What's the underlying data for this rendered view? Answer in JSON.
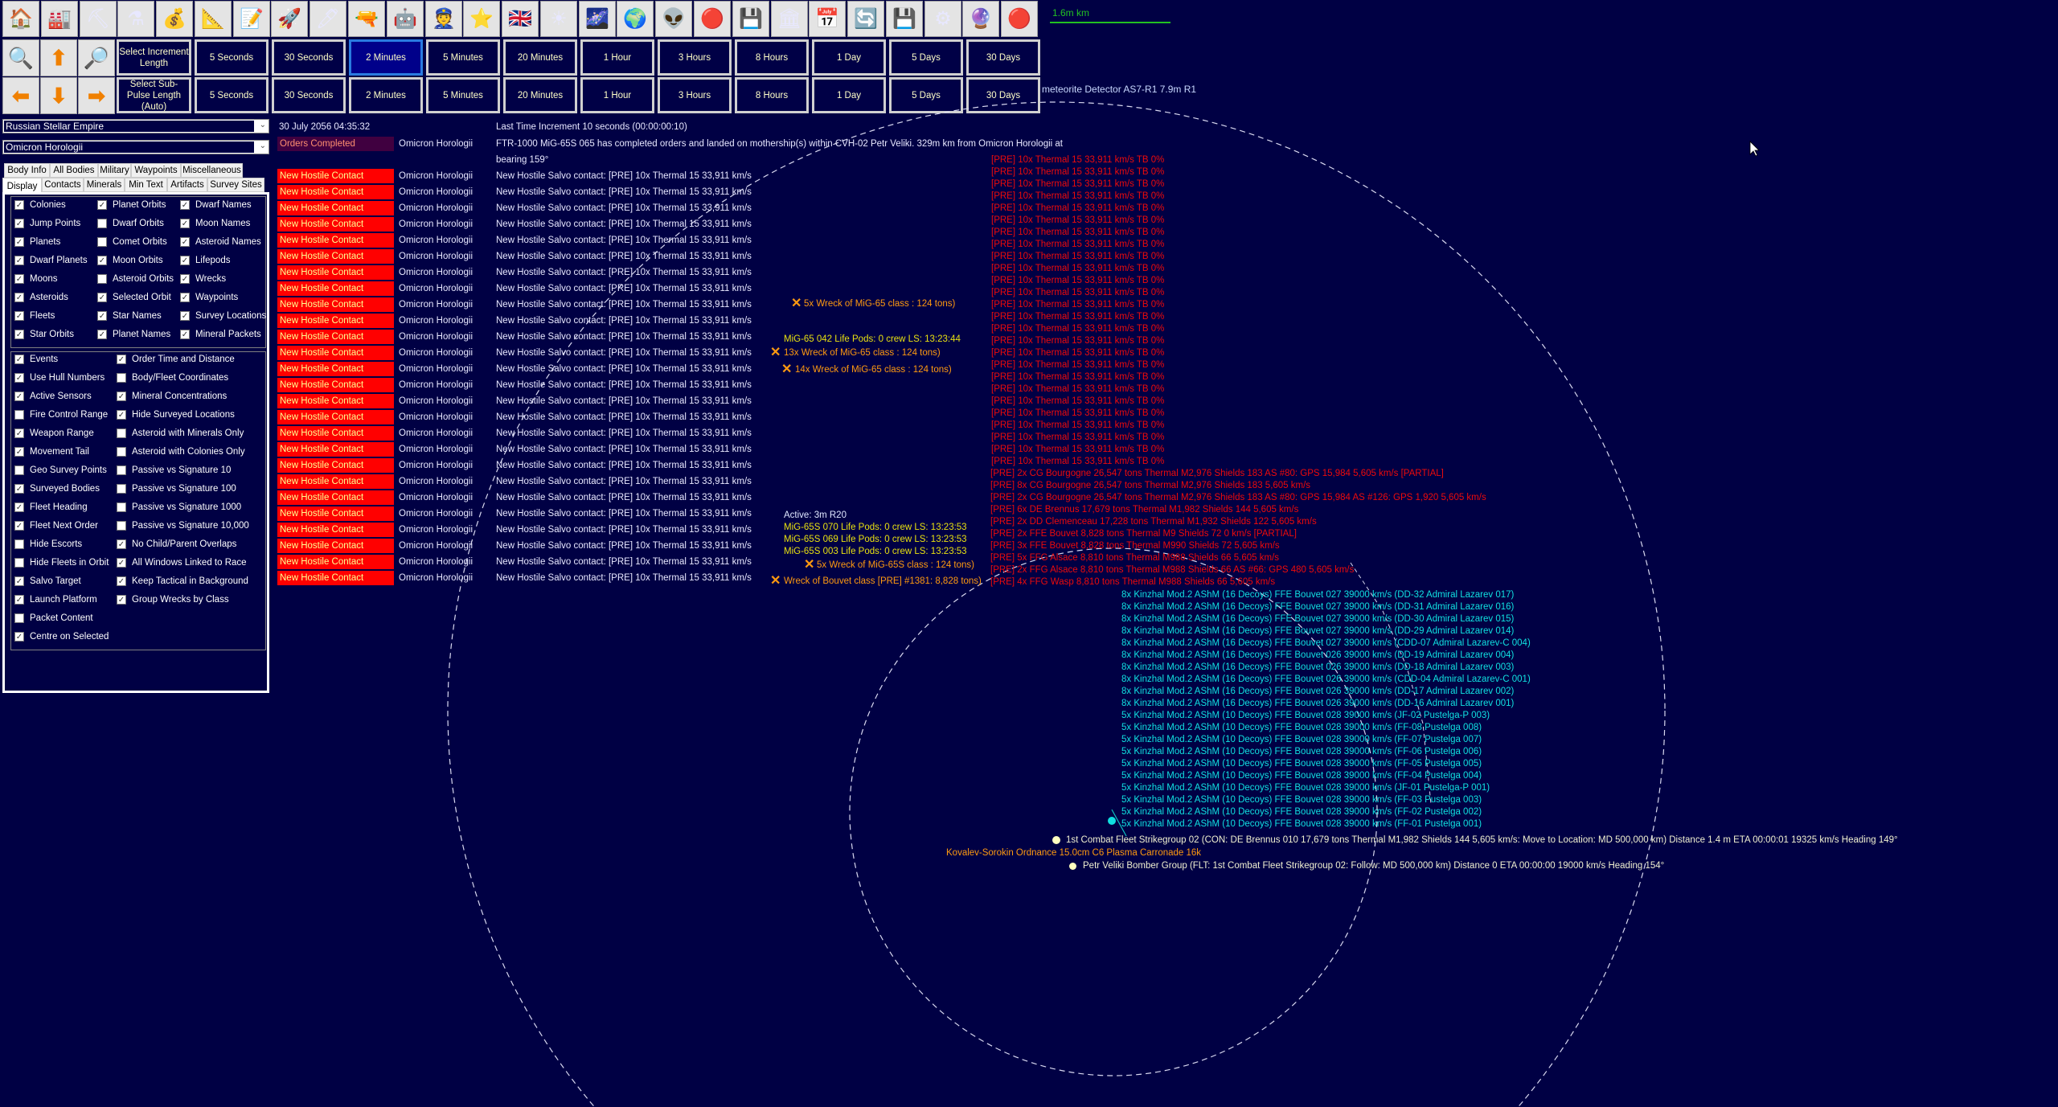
{
  "toolbar": {
    "icons": [
      "colony-house-icon",
      "industry-icon",
      "mining-icon",
      "research-flask-icon",
      "wealth-money-bag-icon",
      "ship-design-blueprint-icon",
      "class-design-icon",
      "warship-icon",
      "missile-icon",
      "ground-forces-icon",
      "walker-vehicle-icon",
      "commander-icon",
      "medal-star-icon",
      "race-flag-icon",
      "solar-system-icon",
      "galaxy-icon",
      "globe-icon",
      "alien-icon",
      "sensor-eye-icon",
      "circuit-board-icon",
      "government-building-icon",
      "calendar-icon",
      "refresh-icon",
      "save-disk-icon",
      "settings-gear-icon",
      "crystal-ball-icon",
      "red-button-icon"
    ],
    "increment_label": "Select Increment Length",
    "subpulse_label": "Select Sub-Pulse Length (Auto)",
    "increments": [
      "5 Seconds",
      "30 Seconds",
      "2 Minutes",
      "5 Minutes",
      "20 Minutes",
      "1 Hour",
      "3 Hours",
      "8 Hours",
      "1 Day",
      "5 Days",
      "30 Days"
    ],
    "selected_increment": "2 Minutes",
    "subpulses": [
      "5 Seconds",
      "30 Seconds",
      "2 Minutes",
      "5 Minutes",
      "20 Minutes",
      "1 Hour",
      "3 Hours",
      "8 Hours",
      "1 Day",
      "5 Days",
      "30 Days"
    ],
    "nav_row1": [
      "zoom-in-icon",
      "arrow-up-icon",
      "zoom-out-icon"
    ],
    "nav_row2": [
      "arrow-left-icon",
      "arrow-down-icon",
      "arrow-right-icon"
    ]
  },
  "scale": {
    "label": "1.6m km",
    "color": "#22c022"
  },
  "sensor_label": "meteorite Detector AS7-R1  7.9m  R1",
  "sidebar": {
    "race": "Russian Stellar Empire",
    "system": "Omicron Horologii",
    "tabs_row1": [
      "Body Info",
      "All Bodies",
      "Military",
      "Waypoints",
      "Miscellaneous"
    ],
    "tabs_row2": [
      "Display",
      "Contacts",
      "Minerals",
      "Min Text",
      "Artifacts",
      "Survey Sites"
    ],
    "selected_tab": "Display",
    "display_options": [
      [
        {
          "label": "Colonies",
          "checked": true
        },
        {
          "label": "Jump Points",
          "checked": true
        },
        {
          "label": "Planets",
          "checked": true
        },
        {
          "label": "Dwarf Planets",
          "checked": true
        },
        {
          "label": "Moons",
          "checked": true
        },
        {
          "label": "Asteroids",
          "checked": true
        },
        {
          "label": "Fleets",
          "checked": true
        },
        {
          "label": "Star Orbits",
          "checked": true
        }
      ],
      [
        {
          "label": "Planet Orbits",
          "checked": true
        },
        {
          "label": "Dwarf Orbits",
          "checked": false
        },
        {
          "label": "Comet Orbits",
          "checked": false
        },
        {
          "label": "Moon Orbits",
          "checked": true
        },
        {
          "label": "Asteroid Orbits",
          "checked": false
        },
        {
          "label": "Selected Orbit",
          "checked": true
        },
        {
          "label": "Star Names",
          "checked": true
        },
        {
          "label": "Planet Names",
          "checked": true
        }
      ],
      [
        {
          "label": "Dwarf Names",
          "checked": true
        },
        {
          "label": "Moon Names",
          "checked": true
        },
        {
          "label": "Asteroid Names",
          "checked": true
        },
        {
          "label": "Lifepods",
          "checked": true
        },
        {
          "label": "Wrecks",
          "checked": true
        },
        {
          "label": "Waypoints",
          "checked": true
        },
        {
          "label": "Survey Locations",
          "checked": true
        },
        {
          "label": "Mineral Packets",
          "checked": true
        }
      ]
    ],
    "other_options": [
      [
        {
          "label": "Events",
          "checked": true
        },
        {
          "label": "Use Hull Numbers",
          "checked": true
        },
        {
          "label": "Active Sensors",
          "checked": true
        },
        {
          "label": "Fire Control Range",
          "checked": false
        },
        {
          "label": "Weapon Range",
          "checked": true
        },
        {
          "label": "Movement Tail",
          "checked": true
        },
        {
          "label": "Geo Survey Points",
          "checked": false
        },
        {
          "label": "Surveyed Bodies",
          "checked": true
        },
        {
          "label": "Fleet Heading",
          "checked": true
        },
        {
          "label": "Fleet Next Order",
          "checked": true
        },
        {
          "label": "Hide Escorts",
          "checked": false
        },
        {
          "label": "Hide Fleets in Orbit",
          "checked": false
        },
        {
          "label": "Salvo Target",
          "checked": true
        },
        {
          "label": "Launch Platform",
          "checked": true
        },
        {
          "label": "Packet Content",
          "checked": false
        },
        {
          "label": "Centre on Selected",
          "checked": true
        }
      ],
      [
        {
          "label": "Order Time and Distance",
          "checked": true
        },
        {
          "label": "Body/Fleet Coordinates",
          "checked": false
        },
        {
          "label": "Mineral Concentrations",
          "checked": true
        },
        {
          "label": "Hide Surveyed Locations",
          "checked": true
        },
        {
          "label": "Asteroid with Minerals Only",
          "checked": false
        },
        {
          "label": "Asteroid with Colonies Only",
          "checked": false
        },
        {
          "label": "Passive vs Signature 10",
          "checked": false
        },
        {
          "label": "Passive vs Signature 100",
          "checked": false
        },
        {
          "label": "Passive vs Signature 1000",
          "checked": false
        },
        {
          "label": "Passive vs Signature 10,000",
          "checked": false
        },
        {
          "label": "No Child/Parent Overlaps",
          "checked": true
        },
        {
          "label": "All Windows Linked to Race",
          "checked": true
        },
        {
          "label": "Keep Tactical in Background",
          "checked": true
        },
        {
          "label": "Group Wrecks by Class",
          "checked": true
        }
      ]
    ]
  },
  "events": {
    "date": "30 July 2056 04:35:32",
    "last_increment": "Last Time Increment 10 seconds (00:00:00:10)",
    "orders": {
      "type": "Orders Completed",
      "system": "Omicron Horologii",
      "message": "FTR-1000 MiG-65S 065 has completed orders and landed on mothership(s) within CVH-02 Petr Veliki. 329m km from Omicron Horologii at",
      "message_cont": "bearing 159°"
    },
    "hostile_type": "New Hostile Contact",
    "hostile_system": "Omicron Horologii",
    "hostile_messages": [
      "New Hostile Salvo contact:  [PRE] 10x Thermal 15  33,911 km/s",
      "New Hostile Salvo contact:  [PRE] 10x Thermal 15  33,911 km/s",
      "New Hostile Salvo contact:  [PRE] 10x Thermal 15  33,911 km/s",
      "New Hostile Salvo contact:  [PRE] 10x Thermal 15  33,911 km/s",
      "New Hostile Salvo contact:  [PRE] 10x Thermal 15  33,911 km/s",
      "New Hostile Salvo contact:  [PRE] 10x Thermal 15  33,911 km/s",
      "New Hostile Salvo contact:  [PRE] 10x Thermal 15  33,911 km/s",
      "New Hostile Salvo contact:  [PRE] 10x Thermal 15  33,911 km/s",
      "New Hostile Salvo contact:  [PRE] 10x Thermal 15  33,911 km/s",
      "New Hostile Salvo contact:  [PRE] 10x Thermal 15  33,911 km/s",
      "New Hostile Salvo contact:  [PRE] 10x Thermal 15  33,911 km/s",
      "New Hostile Salvo contact:  [PRE] 10x Thermal 15  33,911 km/s",
      "New Hostile Salvo contact:  [PRE] 10x Thermal 15  33,911 km/s",
      "New Hostile Salvo contact:  [PRE] 10x Thermal 15  33,911 km/s",
      "New Hostile Salvo contact:  [PRE] 10x Thermal 15  33,911 km/s",
      "New Hostile Salvo contact:  [PRE] 10x Thermal 15  33,911 km/s",
      "New Hostile Salvo contact:  [PRE] 10x Thermal 15  33,911 km/s",
      "New Hostile Salvo contact:  [PRE] 10x Thermal 15  33,911 km/s",
      "New Hostile Salvo contact:  [PRE] 10x Thermal 15  33,911 km/s",
      "New Hostile Salvo contact:  [PRE] 10x Thermal 15  33,911 km/s",
      "New Hostile Salvo contact:  [PRE] 10x Thermal 15  33,911 km/s",
      "New Hostile Salvo contact:  [PRE] 10x Thermal 15  33,911 km/s",
      "New Hostile Salvo contact:  [PRE] 10x Thermal 15  33,911 km/s",
      "New Hostile Salvo contact:  [PRE] 10x Thermal 15  33,911 km/s",
      "New Hostile Salvo contact:  [PRE] 10x Thermal 15  33,911 km/s",
      "New Hostile Salvo contact:  [PRE] 10x Thermal 15  33,911 km/s"
    ]
  },
  "map": {
    "hostile_salvos": [
      "[PRE] 10x Thermal 15  33,911 km/s  TB 0%",
      "[PRE] 10x Thermal 15  33,911 km/s  TB 0%",
      "[PRE] 10x Thermal 15  33,911 km/s  TB 0%",
      "[PRE] 10x Thermal 15  33,911 km/s  TB 0%",
      "[PRE] 10x Thermal 15  33,911 km/s  TB 0%",
      "[PRE] 10x Thermal 15  33,911 km/s  TB 0%",
      "[PRE] 10x Thermal 15  33,911 km/s  TB 0%",
      "[PRE] 10x Thermal 15  33,911 km/s  TB 0%",
      "[PRE] 10x Thermal 15  33,911 km/s  TB 0%",
      "[PRE] 10x Thermal 15  33,911 km/s  TB 0%",
      "[PRE] 10x Thermal 15  33,911 km/s  TB 0%",
      "[PRE] 10x Thermal 15  33,911 km/s  TB 0%",
      "[PRE] 10x Thermal 15  33,911 km/s  TB 0%",
      "[PRE] 10x Thermal 15  33,911 km/s  TB 0%",
      "[PRE] 10x Thermal 15  33,911 km/s  TB 0%",
      "[PRE] 10x Thermal 15  33,911 km/s  TB 0%",
      "[PRE] 10x Thermal 15  33,911 km/s  TB 0%",
      "[PRE] 10x Thermal 15  33,911 km/s  TB 0%",
      "[PRE] 10x Thermal 15  33,911 km/s  TB 0%",
      "[PRE] 10x Thermal 15  33,911 km/s  TB 0%",
      "[PRE] 10x Thermal 15  33,911 km/s  TB 0%",
      "[PRE] 10x Thermal 15  33,911 km/s  TB 0%",
      "[PRE] 10x Thermal 15  33,911 km/s  TB 0%",
      "[PRE] 10x Thermal 15  33,911 km/s  TB 0%",
      "[PRE] 10x Thermal 15  33,911 km/s  TB 0%",
      "[PRE] 10x Thermal 15  33,911 km/s  TB 0%"
    ],
    "hostile_ships": [
      "[PRE]  2x CG Bourgogne  26,547 tons   Thermal M2,976   Shields 183   AS #80: GPS 15,984   5,605 km/s   [PARTIAL]",
      "[PRE]  8x CG Bourgogne  26,547 tons   Thermal M2,976   Shields 183   5,605 km/s",
      "[PRE]  2x CG Bourgogne  26,547 tons   Thermal M2,976   Shields 183   AS #80: GPS 15,984   AS #126: GPS 1,920   5,605 km/s",
      "[PRE]  6x DE Brennus  17,679 tons   Thermal M1,982   Shields 144   5,605 km/s",
      "[PRE]  2x DD Clemenceau  17,228 tons   Thermal M1,932   Shields 122   5,605 km/s",
      "[PRE]  2x FFE Bouvet  8,828 tons   Thermal M9   Shields 72   0 km/s   [PARTIAL]",
      "[PRE]  3x FFE Bouvet  8,828 tons   Thermal M990   Shields 72   5,605 km/s",
      "[PRE]  5x FFG Alsace  8,810 tons   Thermal M988   Shields 66   5,605 km/s",
      "[PRE]  2x FFG Alsace  8,810 tons   Thermal M988   Shields 66   AS #66: GPS 480   5,605 km/s",
      "[PRE]  4x FFG Wasp  8,810 tons   Thermal M988   Shields 66   5,605 km/s"
    ],
    "missiles": [
      "8x Kinzhal Mod.2 AShM (16 Decoys)  FFE Bouvet 027  39000 km/s (DD-32 Admiral Lazarev 017)",
      "8x Kinzhal Mod.2 AShM (16 Decoys)  FFE Bouvet 027  39000 km/s (DD-31 Admiral Lazarev 016)",
      "8x Kinzhal Mod.2 AShM (16 Decoys)  FFE Bouvet 027  39000 km/s (DD-30 Admiral Lazarev 015)",
      "8x Kinzhal Mod.2 AShM (16 Decoys)  FFE Bouvet 027  39000 km/s (DD-29 Admiral Lazarev 014)",
      "8x Kinzhal Mod.2 AShM (16 Decoys)  FFE Bouvet 027  39000 km/s (CDD-07 Admiral Lazarev-C 004)",
      "8x Kinzhal Mod.2 AShM (16 Decoys)  FFE Bouvet 026  39000 km/s (DD-19 Admiral Lazarev 004)",
      "8x Kinzhal Mod.2 AShM (16 Decoys)  FFE Bouvet 026  39000 km/s (DD-18 Admiral Lazarev 003)",
      "8x Kinzhal Mod.2 AShM (16 Decoys)  FFE Bouvet 026  39000 km/s (CDD-04 Admiral Lazarev-C 001)",
      "8x Kinzhal Mod.2 AShM (16 Decoys)  FFE Bouvet 026  39000 km/s (DD-17 Admiral Lazarev 002)",
      "8x Kinzhal Mod.2 AShM (16 Decoys)  FFE Bouvet 026  39000 km/s (DD-16 Admiral Lazarev 001)",
      "5x Kinzhal Mod.2 AShM (10 Decoys)  FFE Bouvet 028  39000 km/s (JF-02 Pustelga-P 003)",
      "5x Kinzhal Mod.2 AShM (10 Decoys)  FFE Bouvet 028  39000 km/s (FF-08 Pustelga 008)",
      "5x Kinzhal Mod.2 AShM (10 Decoys)  FFE Bouvet 028  39000 km/s (FF-07 Pustelga 007)",
      "5x Kinzhal Mod.2 AShM (10 Decoys)  FFE Bouvet 028  39000 km/s (FF-06 Pustelga 006)",
      "5x Kinzhal Mod.2 AShM (10 Decoys)  FFE Bouvet 028  39000 km/s (FF-05 Pustelga 005)",
      "5x Kinzhal Mod.2 AShM (10 Decoys)  FFE Bouvet 028  39000 km/s (FF-04 Pustelga 004)",
      "5x Kinzhal Mod.2 AShM (10 Decoys)  FFE Bouvet 028  39000 km/s (JF-01 Pustelga-P 001)",
      "5x Kinzhal Mod.2 AShM (10 Decoys)  FFE Bouvet 028  39000 km/s (FF-03 Pustelga 003)",
      "5x Kinzhal Mod.2 AShM (10 Decoys)  FFE Bouvet 028  39000 km/s (FF-02 Pustelga 002)",
      "5x Kinzhal Mod.2 AShM (10 Decoys)  FFE Bouvet 028  39000 km/s (FF-01 Pustelga 001)"
    ],
    "wrecks": {
      "w1": "5x Wreck of MiG-65 class : 124 tons)",
      "w2": "13x Wreck of MiG-65 class : 124 tons)",
      "w3": "14x Wreck of MiG-65 class : 124 tons)",
      "w4": "5x Wreck of MiG-65S class : 124 tons)",
      "w5": "Wreck of Bouvet class [PRE] #1381: 8,828 tons)"
    },
    "lifepods": {
      "p1": "MiG-65 042 Life Pods:  0 crew    LS: 13:23:44",
      "p2": "MiG-65S 070 Life Pods:  0 crew    LS: 13:23:53",
      "p3": "MiG-65S 069 Life Pods:  0 crew    LS: 13:23:53",
      "p4": "MiG-65S 003 Life Pods:  0 crew    LS: 13:23:53"
    },
    "active_sensor": "Active: 3m  R20",
    "fleet1": "1st Combat Fleet Strikegroup 02  (CON: DE Brennus 010  17,679 tons   Thermal M1,982   Shields 144   5,605 km/s: Move to Location: MD 500,000 km)   Distance 1.4 m   ETA 00:00:01   19325 km/s   Heading 149°",
    "ordnance": "Kovalev-Sorokin Ordnance 15.0cm C6 Plasma Carronade  16k",
    "fleet2": "Petr Veliki Bomber Group  (FLT: 1st Combat Fleet Strikegroup 02: Follow: MD 500,000 km)   Distance 0   ETA 00:00:00   19000 km/s   Heading 154°",
    "colors": {
      "hostile": "#ee0a0a",
      "missile": "#10e0e0",
      "wreck": "#ff9a10",
      "lifepod": "#e8e010",
      "background": "#000044"
    }
  }
}
